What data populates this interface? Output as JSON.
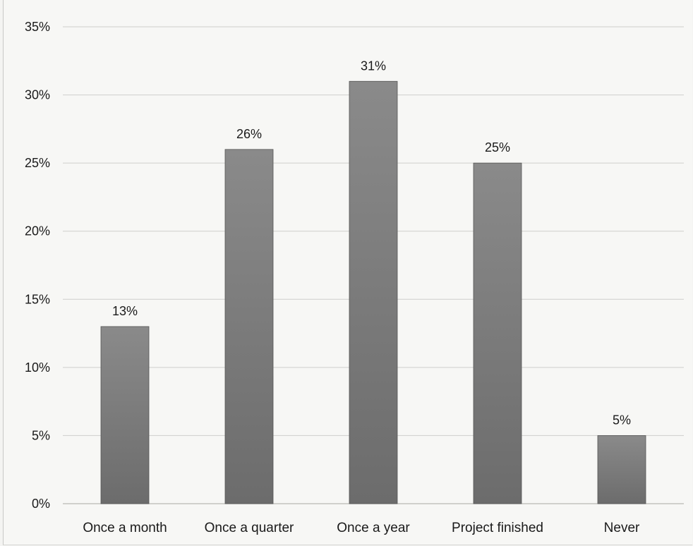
{
  "chart_data": {
    "type": "bar",
    "categories": [
      "Once a month",
      "Once a quarter",
      "Once a year",
      "Project finished",
      "Never"
    ],
    "values": [
      13,
      26,
      31,
      25,
      5
    ],
    "data_labels": [
      "13%",
      "26%",
      "31%",
      "25%",
      "5%"
    ],
    "value_unit": "%",
    "ylim": [
      0,
      35
    ],
    "yticks": [
      0,
      5,
      10,
      15,
      20,
      25,
      30,
      35
    ],
    "ytick_labels": [
      "0%",
      "5%",
      "10%",
      "15%",
      "20%",
      "25%",
      "30%",
      "35%"
    ],
    "grid": true,
    "bar_color": "#7a7a7a",
    "title": "",
    "xlabel": "",
    "ylabel": ""
  }
}
